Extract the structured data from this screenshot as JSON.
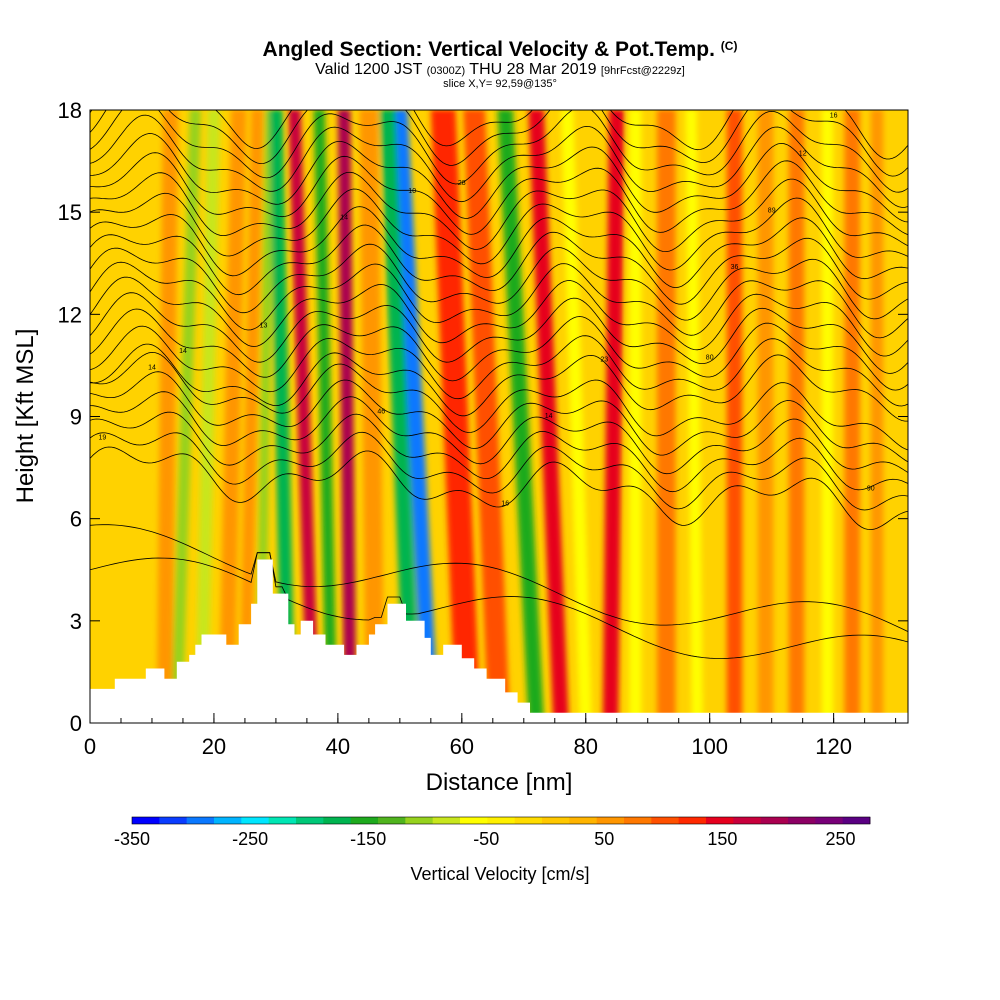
{
  "header": {
    "title": "Angled Section: Vertical Velocity & Pot.Temp.",
    "copyright": "(C)",
    "valid_prefix": "Valid 1200 JST",
    "valid_utc": "(0300Z)",
    "valid_date": "THU 28 Mar 2019",
    "forecast": "[9hrFcst@2229z]",
    "slice": "slice X,Y= 92,59@135°"
  },
  "chart_data": {
    "type": "heatmap",
    "xlabel": "Distance [nm]",
    "ylabel": "Height [Kft MSL]",
    "xlim": [
      0,
      132
    ],
    "ylim": [
      0,
      18
    ],
    "xticks": [
      "0",
      "20",
      "40",
      "60",
      "80",
      "100",
      "120"
    ],
    "yticks": [
      "0",
      "3",
      "6",
      "9",
      "12",
      "15",
      "18"
    ],
    "colorbar": {
      "label": "Vertical Velocity [cm/s]",
      "range": [
        -350,
        275
      ],
      "tick_labels": [
        "-350",
        "-250",
        "-150",
        "-50",
        "50",
        "150",
        "250"
      ],
      "colors": [
        "#0000ff",
        "#0a3cff",
        "#0a78ff",
        "#00b4ff",
        "#00e6ff",
        "#00e6b4",
        "#00c878",
        "#00b450",
        "#1eaa1e",
        "#50b41e",
        "#96d21e",
        "#c8e61e",
        "#ffff00",
        "#fff000",
        "#ffdc00",
        "#ffc800",
        "#ffb400",
        "#ff9600",
        "#ff7800",
        "#ff5000",
        "#ff2800",
        "#e6001e",
        "#c8003c",
        "#aa0050",
        "#8c0064",
        "#780078",
        "#5a0082"
      ]
    },
    "bands": [
      {
        "x_bottom": 12,
        "x_top": 13,
        "width": 2.5,
        "value": 60
      },
      {
        "x_bottom": 14,
        "x_top": 17,
        "width": 1.8,
        "value": -100
      },
      {
        "x_bottom": 18,
        "x_top": 20,
        "width": 2.0,
        "value": -80
      },
      {
        "x_bottom": 22,
        "x_top": 24,
        "width": 2.5,
        "value": 50
      },
      {
        "x_bottom": 25,
        "x_top": 27,
        "width": 2.0,
        "value": 60
      },
      {
        "x_bottom": 27.5,
        "x_top": 29,
        "width": 1.5,
        "value": -110
      },
      {
        "x_bottom": 32,
        "x_top": 30,
        "width": 2.2,
        "value": -180
      },
      {
        "x_bottom": 36,
        "x_top": 33,
        "width": 2.0,
        "value": 170
      },
      {
        "x_bottom": 39,
        "x_top": 37,
        "width": 1.8,
        "value": -150
      },
      {
        "x_bottom": 42,
        "x_top": 41,
        "width": 2.0,
        "value": 200
      },
      {
        "x_bottom": 46,
        "x_top": 45,
        "width": 3.0,
        "value": 60
      },
      {
        "x_bottom": 55,
        "x_top": 50,
        "width": 2.5,
        "value": -300
      },
      {
        "x_bottom": 52,
        "x_top": 48,
        "width": 2.5,
        "value": -170
      },
      {
        "x_bottom": 61,
        "x_top": 57,
        "width": 4.0,
        "value": 130
      },
      {
        "x_bottom": 66,
        "x_top": 62,
        "width": 3.5,
        "value": 100
      },
      {
        "x_bottom": 72,
        "x_top": 67,
        "width": 2.5,
        "value": -160
      },
      {
        "x_bottom": 76,
        "x_top": 72,
        "width": 2.5,
        "value": 150
      },
      {
        "x_bottom": 80,
        "x_top": 77,
        "width": 2.0,
        "value": -60
      },
      {
        "x_bottom": 84,
        "x_top": 85,
        "width": 2.5,
        "value": 150
      },
      {
        "x_bottom": 88,
        "x_top": 88,
        "width": 2.0,
        "value": -70
      },
      {
        "x_bottom": 93,
        "x_top": 93,
        "width": 3.0,
        "value": 80
      },
      {
        "x_bottom": 98,
        "x_top": 97,
        "width": 1.8,
        "value": -60
      },
      {
        "x_bottom": 104,
        "x_top": 104,
        "width": 2.5,
        "value": 100
      },
      {
        "x_bottom": 109,
        "x_top": 109,
        "width": 2.5,
        "value": 60
      },
      {
        "x_bottom": 114,
        "x_top": 114,
        "width": 2.5,
        "value": 70
      },
      {
        "x_bottom": 119,
        "x_top": 119,
        "width": 1.8,
        "value": -60
      },
      {
        "x_bottom": 123,
        "x_top": 123,
        "width": 2.5,
        "value": 80
      },
      {
        "x_bottom": 127,
        "x_top": 127,
        "width": 2.0,
        "value": 60
      }
    ],
    "terrain": [
      [
        0,
        1
      ],
      [
        4,
        1
      ],
      [
        4,
        1.3
      ],
      [
        9,
        1.3
      ],
      [
        9,
        1.6
      ],
      [
        12,
        1.6
      ],
      [
        12,
        1.3
      ],
      [
        14,
        1.3
      ],
      [
        14,
        1.8
      ],
      [
        16,
        1.8
      ],
      [
        16,
        2
      ],
      [
        17,
        2
      ],
      [
        17,
        2.3
      ],
      [
        18,
        2.3
      ],
      [
        18,
        2.6
      ],
      [
        22,
        2.6
      ],
      [
        22,
        2.3
      ],
      [
        24,
        2.3
      ],
      [
        24,
        2.9
      ],
      [
        26,
        2.9
      ],
      [
        26,
        3.5
      ],
      [
        27,
        3.5
      ],
      [
        27,
        4.8
      ],
      [
        29.5,
        4.8
      ],
      [
        29.5,
        3.8
      ],
      [
        32,
        3.8
      ],
      [
        32,
        2.9
      ],
      [
        33,
        2.9
      ],
      [
        33,
        2.6
      ],
      [
        34,
        2.6
      ],
      [
        34,
        3
      ],
      [
        36,
        3
      ],
      [
        36,
        2.6
      ],
      [
        38,
        2.6
      ],
      [
        38,
        2.3
      ],
      [
        41,
        2.3
      ],
      [
        41,
        2
      ],
      [
        43,
        2
      ],
      [
        43,
        2.3
      ],
      [
        45,
        2.3
      ],
      [
        45,
        2.6
      ],
      [
        46,
        2.6
      ],
      [
        46,
        2.9
      ],
      [
        48,
        2.9
      ],
      [
        48,
        3.5
      ],
      [
        51,
        3.5
      ],
      [
        51,
        3
      ],
      [
        54,
        3
      ],
      [
        54,
        2.5
      ],
      [
        55,
        2.5
      ],
      [
        55,
        2
      ],
      [
        57,
        2
      ],
      [
        57,
        2.3
      ],
      [
        60,
        2.3
      ],
      [
        60,
        1.9
      ],
      [
        62,
        1.9
      ],
      [
        62,
        1.6
      ],
      [
        64,
        1.6
      ],
      [
        64,
        1.3
      ],
      [
        67,
        1.3
      ],
      [
        67,
        0.9
      ],
      [
        69,
        0.9
      ],
      [
        69,
        0.6
      ],
      [
        71,
        0.6
      ],
      [
        71,
        0.3
      ],
      [
        132,
        0.3
      ]
    ],
    "isentropes": {
      "base_heights": [
        7.0,
        7.5,
        8.0,
        8.5,
        9.0,
        9.5,
        10.0,
        10.5,
        11.0,
        11.5,
        12.0,
        12.5,
        13.0,
        13.5,
        14.0,
        14.5,
        15.0,
        15.5,
        16.0,
        16.5,
        17.0,
        17.5,
        18.0
      ],
      "labels": [
        "19",
        "14",
        "14",
        "13",
        "14",
        "10",
        "28",
        "16",
        "14",
        "23",
        "80",
        "36",
        "89",
        "12",
        "16",
        "90",
        "46"
      ]
    }
  }
}
